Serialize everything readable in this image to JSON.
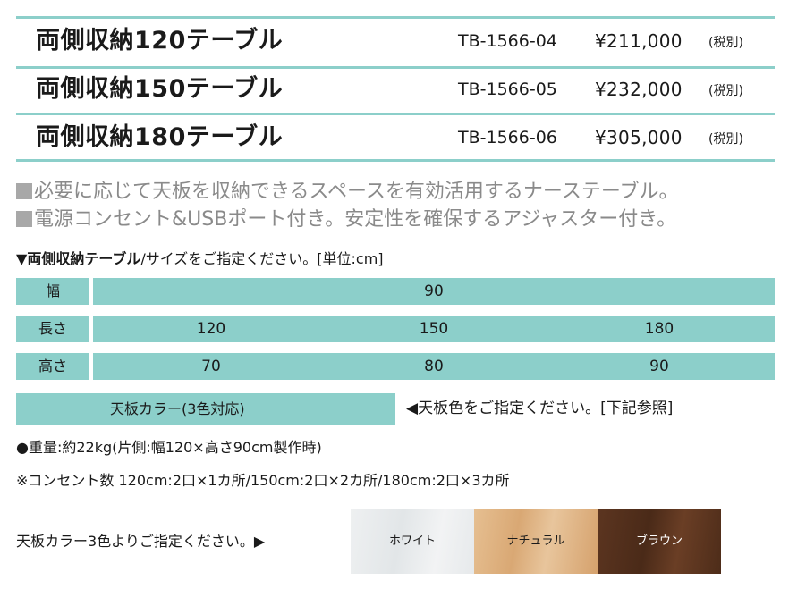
{
  "products": [
    {
      "name": "両側収納120テーブル",
      "code": "TB-1566-04",
      "price": "¥211,000",
      "tax": "(税別)"
    },
    {
      "name": "両側収納150テーブル",
      "code": "TB-1566-05",
      "price": "¥232,000",
      "tax": "(税別)"
    },
    {
      "name": "両側収納180テーブル",
      "code": "TB-1566-06",
      "price": "¥305,000",
      "tax": "(税別)"
    }
  ],
  "features": [
    "必要に応じて天板を収納できるスペースを有効活用するナーステーブル。",
    "電源コンセント&USBポート付き。安定性を確保するアジャスター付き。"
  ],
  "size_section": {
    "bold": "両側収納テーブル",
    "rest": "/サイズをご指定ください。[単位:cm]"
  },
  "size_table": {
    "width": {
      "label": "幅",
      "values": [
        "90"
      ]
    },
    "length": {
      "label": "長さ",
      "values": [
        "120",
        "150",
        "180"
      ]
    },
    "height": {
      "label": "高さ",
      "values": [
        "70",
        "80",
        "90"
      ]
    }
  },
  "top_color": {
    "label": "天板カラー(3色対応)",
    "note": "◀天板色をご指定ください。[下記参照]"
  },
  "weight": "●重量:約22kg(片側:幅120×高さ90cm製作時)",
  "outlets": "※コンセント数 120cm:2口×1カ所/150cm:2口×2カ所/180cm:2口×3カ所",
  "swatch_section": {
    "label": "天板カラー3色よりご指定ください。▶",
    "swatches": [
      {
        "name": "ホワイト",
        "color": "#e9ecee"
      },
      {
        "name": "ナチュラル",
        "color": "#deb282"
      },
      {
        "name": "ブラウン",
        "color": "#55311d"
      }
    ]
  }
}
